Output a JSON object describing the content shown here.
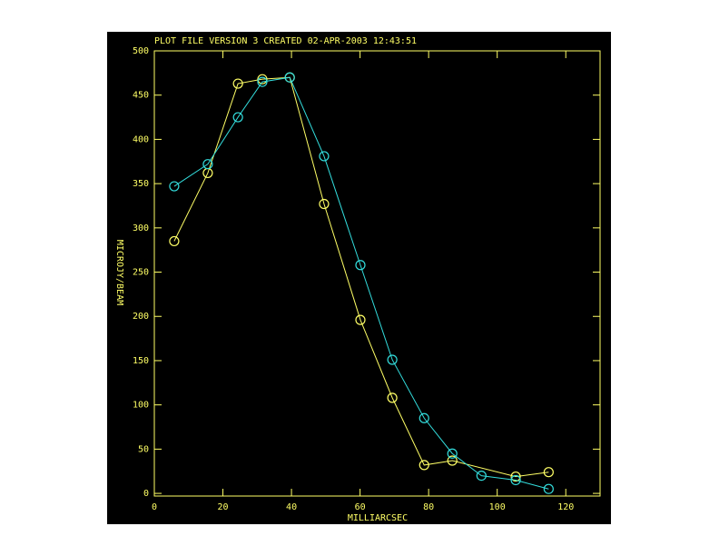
{
  "chart_data": {
    "type": "line",
    "title": "PLOT FILE VERSION 3  CREATED 02-APR-2003 12:43:51",
    "xlabel": "MILLIARCSEC",
    "ylabel": "MICROJY/BEAM",
    "xlim": [
      0,
      130
    ],
    "ylim": [
      -3,
      500
    ],
    "xticks": [
      0,
      20,
      40,
      60,
      80,
      100,
      120
    ],
    "yticks": [
      0,
      50,
      100,
      150,
      200,
      250,
      300,
      350,
      400,
      450,
      500
    ],
    "axis_color": "#ffff66",
    "series": [
      {
        "color": "#ffff66",
        "x": [
          5.8,
          15.6,
          24.4,
          31.5,
          39.5,
          49.5,
          60.1,
          69.4,
          78.7,
          86.9,
          105.4,
          115
        ],
        "values": [
          285,
          362,
          463,
          468,
          470,
          327,
          196,
          108,
          32,
          37,
          19,
          24
        ]
      },
      {
        "color": "#33dddd",
        "x": [
          5.8,
          15.6,
          24.4,
          31.5,
          39.5,
          49.5,
          60.1,
          69.4,
          78.7,
          86.9,
          95.4,
          105.4,
          115
        ],
        "values": [
          347,
          372,
          425,
          465,
          470,
          381,
          258,
          151,
          85,
          45,
          20,
          15,
          5
        ]
      }
    ]
  }
}
